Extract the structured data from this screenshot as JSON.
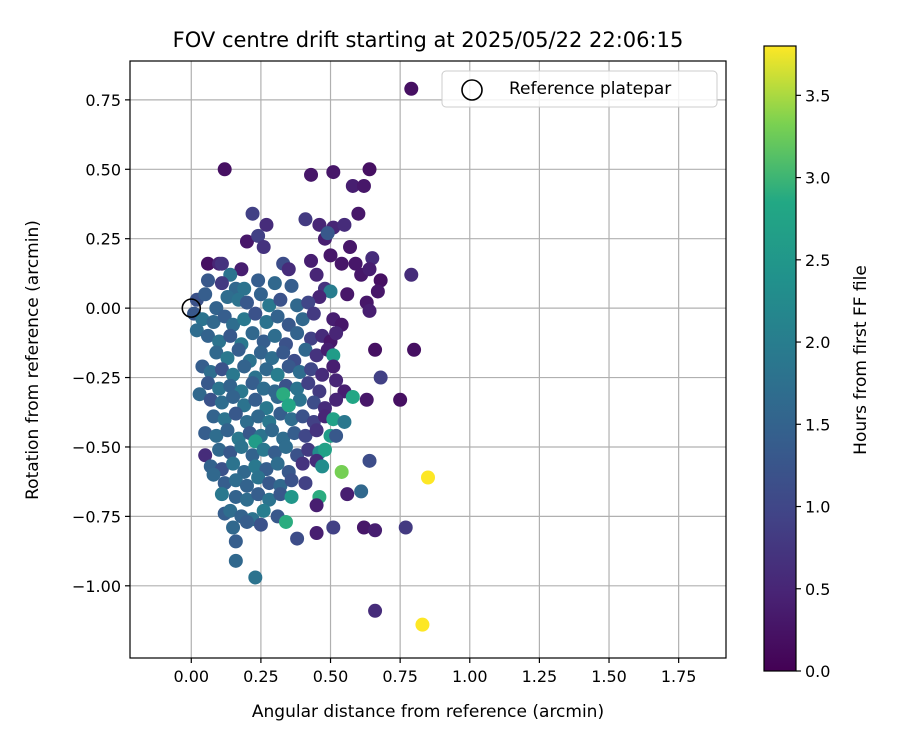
{
  "chart_data": {
    "type": "scatter",
    "title": "FOV centre drift starting at 2025/05/22 22:06:15",
    "xlabel": "Angular distance from reference (arcmin)",
    "ylabel": "Rotation from reference (arcmin)",
    "xlim": [
      -0.22,
      1.92
    ],
    "ylim": [
      -1.26,
      0.89
    ],
    "xticks": [
      0.0,
      0.25,
      0.5,
      0.75,
      1.0,
      1.25,
      1.5,
      1.75
    ],
    "xtick_labels": [
      "0.00",
      "0.25",
      "0.50",
      "0.75",
      "1.00",
      "1.25",
      "1.50",
      "1.75"
    ],
    "yticks": [
      0.75,
      0.5,
      0.25,
      0.0,
      -0.25,
      -0.5,
      -0.75,
      -1.0
    ],
    "ytick_labels": [
      "0.75",
      "0.50",
      "0.25",
      "0.00",
      "−0.25",
      "−0.50",
      "−0.75",
      "−1.00"
    ],
    "grid": true,
    "legend": {
      "placement": "upper-right",
      "entries": [
        "Reference platepar"
      ]
    },
    "reference_point": {
      "x": 0.0,
      "y": 0.0
    },
    "colorbar": {
      "label": "Hours from first FF file",
      "colormap": "viridis",
      "range": [
        0.0,
        3.8
      ],
      "ticks": [
        0.0,
        0.5,
        1.0,
        1.5,
        2.0,
        2.5,
        3.0,
        3.5
      ],
      "tick_labels": [
        "0.0",
        "0.5",
        "1.0",
        "1.5",
        "2.0",
        "2.5",
        "3.0",
        "3.5"
      ]
    },
    "points": [
      [
        0.79,
        0.79,
        0.2
      ],
      [
        0.12,
        0.5,
        0.2
      ],
      [
        0.43,
        0.48,
        0.3
      ],
      [
        0.51,
        0.49,
        0.3
      ],
      [
        0.64,
        0.5,
        0.2
      ],
      [
        0.58,
        0.44,
        0.4
      ],
      [
        0.62,
        0.44,
        0.3
      ],
      [
        0.22,
        0.34,
        0.9
      ],
      [
        0.27,
        0.3,
        0.6
      ],
      [
        0.51,
        0.29,
        0.5
      ],
      [
        0.55,
        0.3,
        0.6
      ],
      [
        0.6,
        0.34,
        0.3
      ],
      [
        0.41,
        0.32,
        0.8
      ],
      [
        0.46,
        0.3,
        0.5
      ],
      [
        0.48,
        0.25,
        0.4
      ],
      [
        0.49,
        0.27,
        1.3
      ],
      [
        0.2,
        0.24,
        0.3
      ],
      [
        0.24,
        0.26,
        0.9
      ],
      [
        0.26,
        0.22,
        0.7
      ],
      [
        0.57,
        0.22,
        0.3
      ],
      [
        0.65,
        0.18,
        0.6
      ],
      [
        0.79,
        0.12,
        0.6
      ],
      [
        0.06,
        0.16,
        0.2
      ],
      [
        0.1,
        0.16,
        0.5
      ],
      [
        0.11,
        0.16,
        0.7
      ],
      [
        0.18,
        0.14,
        0.4
      ],
      [
        0.14,
        0.12,
        1.8
      ],
      [
        0.33,
        0.16,
        1.1
      ],
      [
        0.35,
        0.14,
        0.6
      ],
      [
        0.43,
        0.17,
        0.4
      ],
      [
        0.45,
        0.12,
        0.5
      ],
      [
        0.5,
        0.19,
        0.3
      ],
      [
        0.54,
        0.16,
        0.3
      ],
      [
        0.59,
        0.16,
        0.3
      ],
      [
        0.61,
        0.12,
        0.3
      ],
      [
        0.64,
        0.14,
        0.4
      ],
      [
        0.68,
        0.1,
        0.2
      ],
      [
        0.67,
        0.06,
        0.3
      ],
      [
        0.06,
        0.1,
        1.3
      ],
      [
        0.11,
        0.09,
        0.8
      ],
      [
        0.16,
        0.07,
        1.6
      ],
      [
        0.19,
        0.07,
        1.8
      ],
      [
        0.24,
        0.1,
        1.4
      ],
      [
        0.3,
        0.09,
        1.6
      ],
      [
        0.36,
        0.08,
        1.4
      ],
      [
        0.48,
        0.07,
        0.7
      ],
      [
        0.5,
        0.06,
        2.0
      ],
      [
        0.46,
        0.04,
        0.5
      ],
      [
        0.56,
        0.05,
        0.3
      ],
      [
        0.63,
        0.02,
        0.3
      ],
      [
        0.02,
        0.03,
        1.2
      ],
      [
        0.05,
        0.05,
        1.4
      ],
      [
        0.09,
        0.0,
        1.5
      ],
      [
        0.13,
        0.04,
        1.7
      ],
      [
        0.17,
        0.03,
        1.8
      ],
      [
        0.2,
        0.02,
        1.3
      ],
      [
        0.25,
        0.05,
        1.5
      ],
      [
        0.28,
        0.01,
        1.9
      ],
      [
        0.32,
        0.03,
        1.2
      ],
      [
        0.38,
        0.01,
        1.6
      ],
      [
        0.42,
        0.02,
        1.0
      ],
      [
        0.01,
        -0.02,
        1.3
      ],
      [
        0.04,
        -0.04,
        1.8
      ],
      [
        0.08,
        -0.05,
        1.6
      ],
      [
        0.12,
        -0.03,
        1.4
      ],
      [
        0.15,
        -0.06,
        1.7
      ],
      [
        0.19,
        -0.04,
        1.9
      ],
      [
        0.23,
        -0.02,
        1.2
      ],
      [
        0.27,
        -0.05,
        1.8
      ],
      [
        0.31,
        -0.03,
        1.5
      ],
      [
        0.35,
        -0.06,
        1.3
      ],
      [
        0.4,
        -0.04,
        1.6
      ],
      [
        0.44,
        -0.02,
        0.8
      ],
      [
        0.51,
        -0.04,
        0.4
      ],
      [
        0.54,
        -0.06,
        0.3
      ],
      [
        0.64,
        -0.01,
        0.4
      ],
      [
        0.02,
        -0.08,
        1.7
      ],
      [
        0.06,
        -0.1,
        1.5
      ],
      [
        0.1,
        -0.12,
        1.8
      ],
      [
        0.14,
        -0.1,
        1.3
      ],
      [
        0.18,
        -0.13,
        1.9
      ],
      [
        0.22,
        -0.09,
        1.6
      ],
      [
        0.26,
        -0.12,
        1.4
      ],
      [
        0.3,
        -0.1,
        1.7
      ],
      [
        0.34,
        -0.13,
        1.2
      ],
      [
        0.38,
        -0.09,
        1.5
      ],
      [
        0.43,
        -0.11,
        0.9
      ],
      [
        0.47,
        -0.1,
        0.6
      ],
      [
        0.5,
        -0.12,
        0.3
      ],
      [
        0.52,
        -0.09,
        0.5
      ],
      [
        0.09,
        -0.16,
        1.6
      ],
      [
        0.13,
        -0.18,
        1.9
      ],
      [
        0.17,
        -0.15,
        1.4
      ],
      [
        0.21,
        -0.19,
        1.8
      ],
      [
        0.25,
        -0.16,
        1.5
      ],
      [
        0.29,
        -0.18,
        1.7
      ],
      [
        0.33,
        -0.16,
        1.3
      ],
      [
        0.37,
        -0.19,
        1.1
      ],
      [
        0.41,
        -0.15,
        1.6
      ],
      [
        0.45,
        -0.17,
        0.7
      ],
      [
        0.49,
        -0.15,
        0.4
      ],
      [
        0.66,
        -0.15,
        0.2
      ],
      [
        0.8,
        -0.15,
        0.2
      ],
      [
        0.51,
        -0.17,
        2.6
      ],
      [
        0.04,
        -0.21,
        1.4
      ],
      [
        0.07,
        -0.23,
        1.7
      ],
      [
        0.11,
        -0.22,
        1.2
      ],
      [
        0.15,
        -0.24,
        1.9
      ],
      [
        0.19,
        -0.21,
        1.5
      ],
      [
        0.23,
        -0.25,
        1.8
      ],
      [
        0.27,
        -0.22,
        1.6
      ],
      [
        0.31,
        -0.24,
        2.0
      ],
      [
        0.35,
        -0.21,
        1.3
      ],
      [
        0.39,
        -0.23,
        1.7
      ],
      [
        0.43,
        -0.22,
        1.0
      ],
      [
        0.47,
        -0.24,
        0.6
      ],
      [
        0.51,
        -0.21,
        0.4
      ],
      [
        0.06,
        -0.27,
        1.3
      ],
      [
        0.1,
        -0.29,
        1.8
      ],
      [
        0.14,
        -0.28,
        1.5
      ],
      [
        0.18,
        -0.3,
        1.9
      ],
      [
        0.22,
        -0.27,
        1.4
      ],
      [
        0.26,
        -0.29,
        1.7
      ],
      [
        0.3,
        -0.3,
        1.6
      ],
      [
        0.34,
        -0.28,
        1.2
      ],
      [
        0.38,
        -0.29,
        1.8
      ],
      [
        0.42,
        -0.27,
        0.9
      ],
      [
        0.46,
        -0.3,
        0.8
      ],
      [
        0.52,
        -0.26,
        0.5
      ],
      [
        0.55,
        -0.3,
        0.4
      ],
      [
        0.68,
        -0.25,
        0.9
      ],
      [
        0.03,
        -0.31,
        1.6
      ],
      [
        0.07,
        -0.33,
        1.2
      ],
      [
        0.11,
        -0.34,
        1.7
      ],
      [
        0.15,
        -0.32,
        1.5
      ],
      [
        0.19,
        -0.35,
        1.8
      ],
      [
        0.23,
        -0.33,
        1.4
      ],
      [
        0.27,
        -0.36,
        1.9
      ],
      [
        0.31,
        -0.32,
        1.6
      ],
      [
        0.35,
        -0.35,
        1.3
      ],
      [
        0.39,
        -0.33,
        1.8
      ],
      [
        0.44,
        -0.34,
        1.1
      ],
      [
        0.48,
        -0.36,
        0.6
      ],
      [
        0.52,
        -0.33,
        0.5
      ],
      [
        0.58,
        -0.32,
        2.8
      ],
      [
        0.63,
        -0.33,
        0.3
      ],
      [
        0.75,
        -0.33,
        0.2
      ],
      [
        0.33,
        -0.31,
        2.9
      ],
      [
        0.08,
        -0.39,
        1.5
      ],
      [
        0.12,
        -0.4,
        1.8
      ],
      [
        0.16,
        -0.38,
        1.3
      ],
      [
        0.2,
        -0.41,
        1.7
      ],
      [
        0.24,
        -0.39,
        1.6
      ],
      [
        0.28,
        -0.41,
        1.9
      ],
      [
        0.32,
        -0.38,
        1.4
      ],
      [
        0.36,
        -0.4,
        1.7
      ],
      [
        0.4,
        -0.39,
        1.2
      ],
      [
        0.44,
        -0.41,
        0.9
      ],
      [
        0.48,
        -0.39,
        0.5
      ],
      [
        0.51,
        -0.4,
        2.7
      ],
      [
        0.55,
        -0.41,
        1.9
      ],
      [
        0.35,
        -0.35,
        2.8
      ],
      [
        0.05,
        -0.45,
        1.4
      ],
      [
        0.09,
        -0.46,
        1.7
      ],
      [
        0.13,
        -0.44,
        1.5
      ],
      [
        0.17,
        -0.47,
        1.9
      ],
      [
        0.21,
        -0.45,
        1.3
      ],
      [
        0.25,
        -0.46,
        1.8
      ],
      [
        0.29,
        -0.44,
        1.6
      ],
      [
        0.33,
        -0.47,
        1.7
      ],
      [
        0.37,
        -0.45,
        1.4
      ],
      [
        0.41,
        -0.46,
        1.0
      ],
      [
        0.45,
        -0.44,
        0.7
      ],
      [
        0.5,
        -0.46,
        2.6
      ],
      [
        0.52,
        -0.46,
        1.3
      ],
      [
        0.23,
        -0.48,
        2.6
      ],
      [
        0.1,
        -0.51,
        1.6
      ],
      [
        0.14,
        -0.52,
        1.3
      ],
      [
        0.18,
        -0.5,
        1.8
      ],
      [
        0.22,
        -0.53,
        1.5
      ],
      [
        0.26,
        -0.51,
        1.9
      ],
      [
        0.3,
        -0.52,
        1.4
      ],
      [
        0.34,
        -0.5,
        1.7
      ],
      [
        0.38,
        -0.53,
        1.2
      ],
      [
        0.42,
        -0.51,
        0.8
      ],
      [
        0.46,
        -0.52,
        2.3
      ],
      [
        0.48,
        -0.51,
        2.7
      ],
      [
        0.05,
        -0.53,
        0.6
      ],
      [
        0.07,
        -0.57,
        1.5
      ],
      [
        0.11,
        -0.58,
        1.2
      ],
      [
        0.15,
        -0.56,
        1.8
      ],
      [
        0.19,
        -0.59,
        1.6
      ],
      [
        0.23,
        -0.57,
        1.9
      ],
      [
        0.27,
        -0.58,
        1.4
      ],
      [
        0.31,
        -0.56,
        1.7
      ],
      [
        0.35,
        -0.59,
        1.3
      ],
      [
        0.4,
        -0.56,
        0.7
      ],
      [
        0.45,
        -0.55,
        0.6
      ],
      [
        0.47,
        -0.57,
        2.3
      ],
      [
        0.54,
        -0.59,
        3.3
      ],
      [
        0.64,
        -0.55,
        1.1
      ],
      [
        0.85,
        -0.61,
        3.8
      ],
      [
        0.08,
        -0.6,
        1.6
      ],
      [
        0.12,
        -0.63,
        1.4
      ],
      [
        0.16,
        -0.62,
        1.7
      ],
      [
        0.2,
        -0.64,
        1.5
      ],
      [
        0.24,
        -0.61,
        1.8
      ],
      [
        0.28,
        -0.63,
        1.3
      ],
      [
        0.32,
        -0.64,
        1.6
      ],
      [
        0.36,
        -0.62,
        1.2
      ],
      [
        0.41,
        -0.63,
        0.9
      ],
      [
        0.11,
        -0.67,
        1.9
      ],
      [
        0.16,
        -0.68,
        1.5
      ],
      [
        0.2,
        -0.69,
        1.7
      ],
      [
        0.24,
        -0.67,
        1.4
      ],
      [
        0.28,
        -0.69,
        1.8
      ],
      [
        0.32,
        -0.67,
        1.3
      ],
      [
        0.36,
        -0.68,
        2.5
      ],
      [
        0.46,
        -0.68,
        2.9
      ],
      [
        0.56,
        -0.67,
        0.4
      ],
      [
        0.61,
        -0.66,
        1.6
      ],
      [
        0.45,
        -0.71,
        0.4
      ],
      [
        0.12,
        -0.74,
        1.4
      ],
      [
        0.14,
        -0.73,
        1.7
      ],
      [
        0.18,
        -0.75,
        1.5
      ],
      [
        0.22,
        -0.76,
        1.8
      ],
      [
        0.26,
        -0.73,
        2.0
      ],
      [
        0.31,
        -0.75,
        1.3
      ],
      [
        0.34,
        -0.77,
        2.9
      ],
      [
        0.15,
        -0.79,
        1.6
      ],
      [
        0.2,
        -0.77,
        1.4
      ],
      [
        0.25,
        -0.78,
        1.2
      ],
      [
        0.38,
        -0.83,
        1.1
      ],
      [
        0.45,
        -0.81,
        0.4
      ],
      [
        0.51,
        -0.79,
        0.9
      ],
      [
        0.62,
        -0.79,
        0.3
      ],
      [
        0.66,
        -0.8,
        0.4
      ],
      [
        0.77,
        -0.79,
        0.8
      ],
      [
        0.16,
        -0.84,
        1.4
      ],
      [
        0.16,
        -0.91,
        1.6
      ],
      [
        0.23,
        -0.97,
        1.8
      ],
      [
        0.66,
        -1.09,
        0.6
      ],
      [
        0.83,
        -1.14,
        3.8
      ]
    ]
  }
}
